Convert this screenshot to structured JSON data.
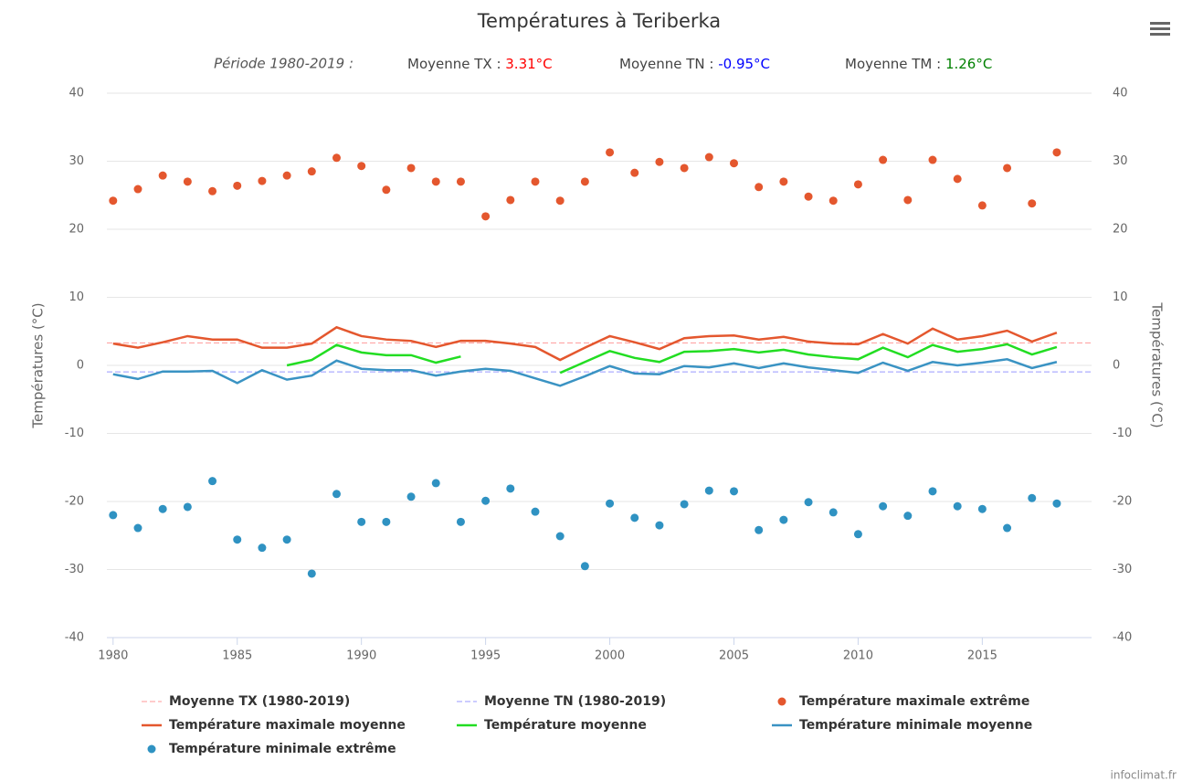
{
  "chart_data": {
    "type": "line",
    "title": "Températures à Teriberka",
    "subtitle": {
      "period": "Période 1980-2019 :",
      "items": [
        {
          "label": "Moyenne TX : ",
          "value_label": "3.31°C",
          "color": "#ff0000"
        },
        {
          "label": "Moyenne TN : ",
          "value_label": "-0.95°C",
          "color": "#0000ff"
        },
        {
          "label": "Moyenne TM : ",
          "value_label": "1.26°C",
          "color": "#008000"
        }
      ]
    },
    "ylabel": "Températures (°C)",
    "y2label": "Températures (°C)",
    "x": [
      1980,
      1981,
      1982,
      1983,
      1984,
      1985,
      1986,
      1987,
      1988,
      1989,
      1990,
      1991,
      1992,
      1993,
      1994,
      1995,
      1996,
      1997,
      1998,
      1999,
      2000,
      2001,
      2002,
      2003,
      2004,
      2005,
      2006,
      2007,
      2008,
      2009,
      2010,
      2011,
      2012,
      2013,
      2014,
      2015,
      2016,
      2017,
      2018
    ],
    "xlim": [
      1979.75,
      2019.4
    ],
    "xticks": [
      1980,
      1985,
      1990,
      1995,
      2000,
      2005,
      2010,
      2015
    ],
    "ylim": [
      -40,
      40
    ],
    "yticks": [
      -40,
      -30,
      -20,
      -10,
      0,
      10,
      20,
      30,
      40
    ],
    "y2lim": [
      -40,
      40
    ],
    "y2ticks": [
      -40,
      -30,
      -20,
      -10,
      0,
      10,
      20,
      30,
      40
    ],
    "grid": true,
    "series": [
      {
        "name": "Moyenne TX (1980-2019)",
        "kind": "reference",
        "color": "#ff9999",
        "value": 3.31
      },
      {
        "name": "Moyenne TN (1980-2019)",
        "kind": "reference",
        "color": "#9999ff",
        "value": -0.95
      },
      {
        "name": "Température maximale extrême",
        "kind": "scatter",
        "color": "#e4572e",
        "values": [
          24.2,
          25.9,
          27.9,
          27.0,
          25.6,
          26.4,
          27.1,
          27.9,
          28.5,
          30.5,
          29.3,
          25.8,
          29.0,
          27.0,
          27.0,
          21.9,
          24.3,
          27.0,
          24.2,
          27.0,
          31.3,
          28.3,
          29.9,
          29.0,
          30.6,
          29.7,
          26.2,
          27.0,
          24.8,
          24.2,
          26.6,
          30.2,
          24.3,
          30.2,
          27.4,
          23.5,
          29.0,
          23.8,
          31.3
        ]
      },
      {
        "name": "Température maximale moyenne",
        "kind": "line",
        "color": "#e4572e",
        "values": [
          3.2,
          2.6,
          3.4,
          4.3,
          3.8,
          3.8,
          2.6,
          2.6,
          3.2,
          5.6,
          4.3,
          3.8,
          3.6,
          2.7,
          3.6,
          3.6,
          3.2,
          2.7,
          0.8,
          2.6,
          4.3,
          3.4,
          2.4,
          4.0,
          4.3,
          4.4,
          3.8,
          4.2,
          3.5,
          3.2,
          3.1,
          4.6,
          3.2,
          5.4,
          3.8,
          4.3,
          5.1,
          3.5,
          4.8
        ]
      },
      {
        "name": "Température moyenne",
        "kind": "line",
        "color": "#22dd22",
        "values": [
          null,
          null,
          null,
          null,
          null,
          null,
          null,
          0.0,
          0.8,
          3.0,
          1.9,
          1.5,
          1.5,
          0.4,
          1.3,
          null,
          null,
          null,
          -1.1,
          0.5,
          2.1,
          1.1,
          0.5,
          2.0,
          2.1,
          2.4,
          1.9,
          2.3,
          1.6,
          1.2,
          0.9,
          2.6,
          1.2,
          3.0,
          2.0,
          2.4,
          3.1,
          1.6,
          2.7
        ]
      },
      {
        "name": "Température minimale moyenne",
        "kind": "line",
        "color": "#3a93c3",
        "values": [
          -1.3,
          -2.0,
          -0.9,
          -0.9,
          -0.8,
          -2.6,
          -0.7,
          -2.1,
          -1.5,
          0.7,
          -0.5,
          -0.7,
          -0.7,
          -1.5,
          -0.9,
          -0.5,
          -0.8,
          -1.9,
          -3.0,
          -1.6,
          -0.1,
          -1.2,
          -1.3,
          -0.1,
          -0.3,
          0.3,
          -0.4,
          0.3,
          -0.3,
          -0.7,
          -1.1,
          0.4,
          -0.8,
          0.5,
          0.0,
          0.4,
          0.9,
          -0.4,
          0.5
        ]
      },
      {
        "name": "Température minimale extrême",
        "kind": "scatter",
        "color": "#2f92c2",
        "values": [
          -22.0,
          -23.9,
          -21.1,
          -20.8,
          -17.0,
          -25.6,
          -26.8,
          -25.6,
          -30.6,
          -18.9,
          -23.0,
          -23.0,
          -19.3,
          -17.3,
          -23.0,
          -19.9,
          -18.1,
          -21.5,
          -25.1,
          -29.5,
          -20.3,
          -22.4,
          -23.5,
          -20.4,
          -18.4,
          -18.5,
          -24.2,
          -22.7,
          -20.1,
          -21.6,
          -24.8,
          -20.7,
          -22.1,
          -18.5,
          -20.7,
          -21.1,
          -23.9,
          -19.5,
          -20.3
        ]
      }
    ],
    "credits": "infoclimat.fr"
  }
}
